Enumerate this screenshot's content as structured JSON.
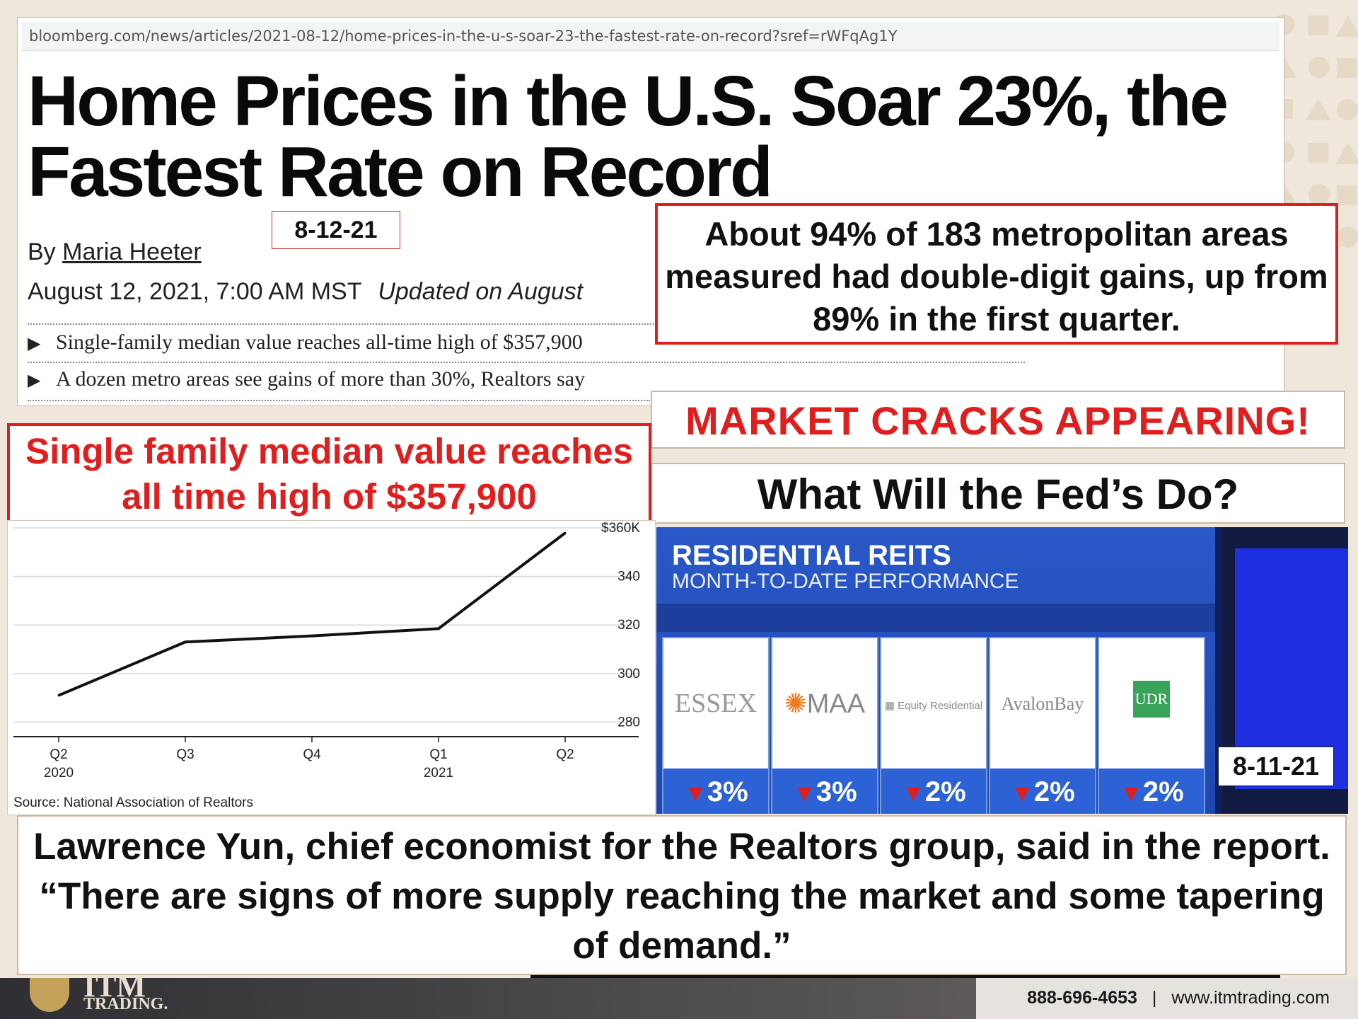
{
  "article": {
    "url": "bloomberg.com/news/articles/2021-08-12/home-prices-in-the-u-s-soar-23-the-fastest-rate-on-record?sref=rWFqAg1Y",
    "headline": "Home Prices in the U.S. Soar 23%, the Fastest Rate on Record",
    "by_prefix": "By",
    "author": "Maria Heeter",
    "date": "August 12, 2021, 7:00 AM MST",
    "updated": "Updated on August",
    "bullets": [
      "Single-family median value reaches all-time high of $357,900",
      "A dozen metro areas see gains of more than 30%, Realtors say"
    ]
  },
  "date_tags": {
    "article": "8-12-21",
    "tv": "8-11-21"
  },
  "callout_metro": "About 94% of 183 metropolitan areas measured had double-digit gains, up from 89% in the first quarter.",
  "market_cracks": "MARKET CRACKS APPEARING!",
  "fed_question": "What Will the Fed’s Do?",
  "median_callout": "Single family median value reaches all time high of $357,900",
  "chart_data": {
    "type": "line",
    "x": [
      "Q2 2020",
      "Q3",
      "Q4",
      "Q1 2021",
      "Q2"
    ],
    "x_tick_labels": [
      [
        "Q2",
        "2020"
      ],
      [
        "Q3",
        ""
      ],
      [
        "Q4",
        ""
      ],
      [
        "Q1",
        "2021"
      ],
      [
        "Q2",
        ""
      ]
    ],
    "series": [
      {
        "values": [
          291,
          313,
          315.5,
          318.5,
          357.9
        ]
      }
    ],
    "y_ticks": [
      280,
      300,
      320,
      340,
      360
    ],
    "y_tick_labels": [
      "280",
      "300",
      "320",
      "340",
      "$360K"
    ],
    "ylim": [
      274,
      360
    ],
    "grid": true,
    "source": "Source: National Association of Realtors",
    "line_color": "#111111"
  },
  "tv": {
    "title": "RESIDENTIAL REITS",
    "subtitle": "MONTH-TO-DATE PERFORMANCE",
    "cards": [
      {
        "name": "ESSEX",
        "perf": "3%"
      },
      {
        "name": "MAA",
        "perf": "3%"
      },
      {
        "name": "Equity Residential",
        "perf": "2%"
      },
      {
        "name": "AvalonBay",
        "perf": "2%"
      },
      {
        "name": "UDR",
        "perf": "2%"
      }
    ]
  },
  "quote": "Lawrence Yun, chief economist for the Realtors group, said in the report. “There are signs of more supply reaching the market and some tapering of demand.”",
  "footer": {
    "brand_top": "ITM",
    "brand_bottom": "TRADING.",
    "phone": "888-696-4653",
    "separator": "|",
    "website": "www.itmtrading.com"
  },
  "colors": {
    "accent_red": "#e01e1e",
    "tv_blue": "#2a58c8"
  }
}
